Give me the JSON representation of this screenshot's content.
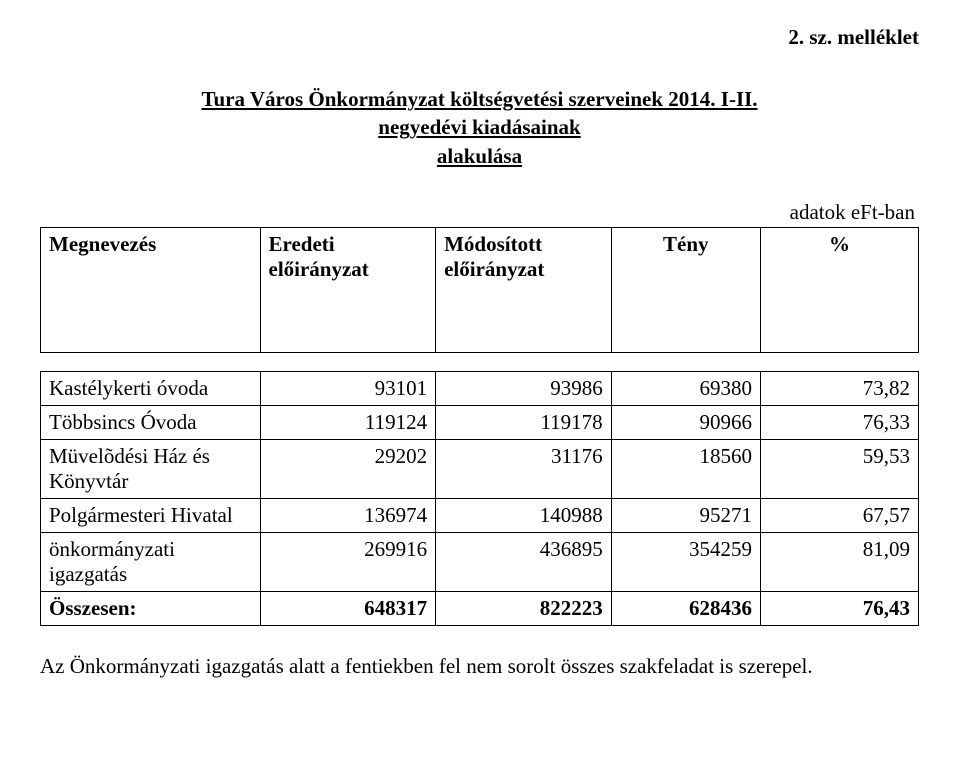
{
  "header_right": "2. sz. melléklet",
  "title_line1": "Tura Város Önkormányzat költségvetési szerveinek 2014. I-II.",
  "title_line2": "negyedévi  kiadásainak",
  "title_line3": "alakulása",
  "unit_label": "adatok eFt-ban",
  "columns": {
    "name": "Megnevezés",
    "orig": "Eredeti előirányzat",
    "mod": "Módosított előirányzat",
    "fact": "Tény",
    "pct": "%"
  },
  "rows": [
    {
      "name": "Kastélykerti óvoda",
      "orig": "93101",
      "mod": "93986",
      "fact": "69380",
      "pct": "73,82"
    },
    {
      "name": "Többsincs Óvoda",
      "orig": "119124",
      "mod": "119178",
      "fact": "90966",
      "pct": "76,33"
    },
    {
      "name": "Müvelõdési Ház és Könyvtár",
      "orig": "29202",
      "mod": "31176",
      "fact": "18560",
      "pct": "59,53"
    },
    {
      "name": "Polgármesteri Hivatal",
      "orig": "136974",
      "mod": "140988",
      "fact": "95271",
      "pct": "67,57"
    },
    {
      "name": "önkormányzati igazgatás",
      "orig": "269916",
      "mod": "436895",
      "fact": "354259",
      "pct": "81,09"
    }
  ],
  "total": {
    "name": "Összesen:",
    "orig": "648317",
    "mod": "822223",
    "fact": "628436",
    "pct": "76,43"
  },
  "footnote": "Az Önkormányzati igazgatás alatt a fentiekben fel nem sorolt összes szakfeladat is szerepel."
}
